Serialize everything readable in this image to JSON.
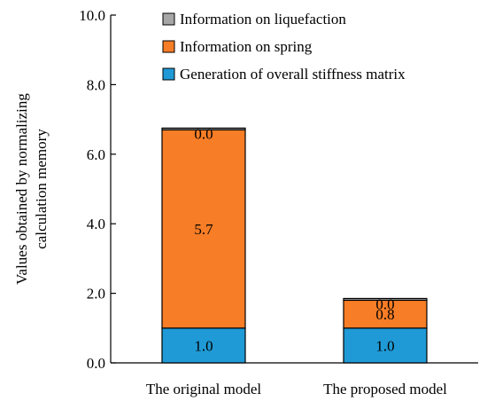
{
  "chart_data": {
    "type": "bar",
    "stacked": true,
    "categories": [
      "The original model",
      "The proposed model"
    ],
    "series": [
      {
        "name": "Generation of overall stiffness matrix",
        "values": [
          1.0,
          1.0
        ],
        "labels": [
          "1.0",
          "1.0"
        ],
        "color": "#1f9ad6"
      },
      {
        "name": "Information on spring",
        "values": [
          5.7,
          0.8
        ],
        "labels": [
          "5.7",
          "0.8"
        ],
        "color": "#f77d26"
      },
      {
        "name": "Information on liquefaction",
        "values": [
          0.0,
          0.0
        ],
        "labels": [
          "0.0",
          "0.0"
        ],
        "color": "#a6a6a6"
      }
    ],
    "ylabel": "Values obtained by normalizing calculation memory",
    "ylabel_lines": [
      "Values obtained by normalizing",
      "calculation memory"
    ],
    "ylim": [
      0,
      10
    ],
    "yticks": [
      "0.0",
      "2.0",
      "4.0",
      "6.0",
      "8.0",
      "10.0"
    ],
    "grid": false,
    "legend_position": "top-right"
  }
}
